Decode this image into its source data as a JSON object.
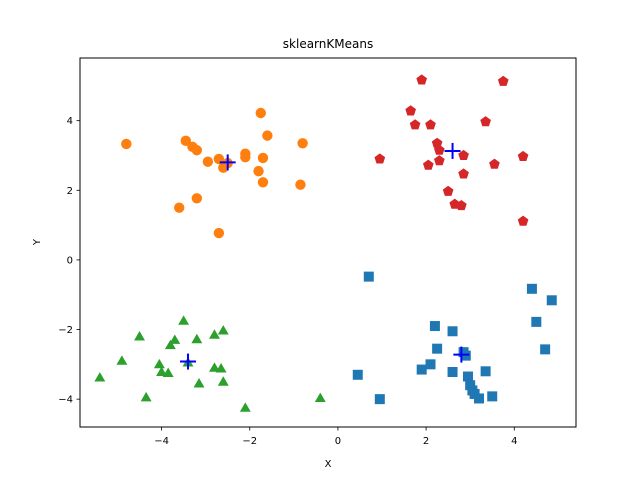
{
  "chart_data": {
    "type": "scatter",
    "title": "sklearnKMeans",
    "xlabel": "X",
    "ylabel": "Y",
    "xlim": [
      -5.85,
      5.4
    ],
    "ylim": [
      -4.8,
      5.8
    ],
    "xticks": [
      -4,
      -2,
      0,
      2,
      4
    ],
    "yticks": [
      -4,
      -2,
      0,
      2,
      4
    ],
    "xtick_labels": [
      "−4",
      "−2",
      "0",
      "2",
      "4"
    ],
    "ytick_labels": [
      "−4",
      "−2",
      "0",
      "2",
      "4"
    ],
    "grid": false,
    "series": [
      {
        "marker": "square",
        "color": "#1f77b4",
        "points": [
          [
            0.7,
            -0.48
          ],
          [
            4.4,
            -0.83
          ],
          [
            4.85,
            -1.16
          ],
          [
            4.5,
            -1.78
          ],
          [
            2.2,
            -1.9
          ],
          [
            2.6,
            -2.05
          ],
          [
            4.7,
            -2.57
          ],
          [
            2.25,
            -2.55
          ],
          [
            2.85,
            -2.65
          ],
          [
            2.9,
            -2.75
          ],
          [
            2.1,
            -3.0
          ],
          [
            1.9,
            -3.15
          ],
          [
            2.6,
            -3.22
          ],
          [
            3.35,
            -3.2
          ],
          [
            0.45,
            -3.3
          ],
          [
            2.95,
            -3.35
          ],
          [
            3.0,
            -3.6
          ],
          [
            3.05,
            -3.75
          ],
          [
            3.1,
            -3.85
          ],
          [
            3.2,
            -3.98
          ],
          [
            3.5,
            -3.92
          ],
          [
            0.95,
            -4.0
          ]
        ]
      },
      {
        "marker": "circle",
        "color": "#ff7f0e",
        "points": [
          [
            -1.75,
            4.22
          ],
          [
            -1.6,
            3.57
          ],
          [
            -4.8,
            3.33
          ],
          [
            -3.45,
            3.42
          ],
          [
            -0.8,
            3.35
          ],
          [
            -3.3,
            3.25
          ],
          [
            -3.2,
            3.15
          ],
          [
            -2.1,
            3.05
          ],
          [
            -2.1,
            2.95
          ],
          [
            -1.7,
            2.93
          ],
          [
            -2.7,
            2.9
          ],
          [
            -2.95,
            2.82
          ],
          [
            -2.6,
            2.65
          ],
          [
            -2.5,
            2.78
          ],
          [
            -1.8,
            2.55
          ],
          [
            -1.7,
            2.23
          ],
          [
            -0.85,
            2.16
          ],
          [
            -3.2,
            1.77
          ],
          [
            -3.6,
            1.5
          ],
          [
            -2.7,
            0.77
          ]
        ]
      },
      {
        "marker": "triangle",
        "color": "#2ca02c",
        "points": [
          [
            -3.5,
            -1.75
          ],
          [
            -2.6,
            -2.03
          ],
          [
            -2.8,
            -2.15
          ],
          [
            -4.5,
            -2.2
          ],
          [
            -3.2,
            -2.28
          ],
          [
            -3.7,
            -2.3
          ],
          [
            -3.8,
            -2.45
          ],
          [
            -4.9,
            -2.9
          ],
          [
            -4.05,
            -3.0
          ],
          [
            -3.4,
            -2.95
          ],
          [
            -2.8,
            -3.1
          ],
          [
            -2.65,
            -3.12
          ],
          [
            -4.0,
            -3.22
          ],
          [
            -3.85,
            -3.25
          ],
          [
            -5.4,
            -3.38
          ],
          [
            -2.6,
            -3.5
          ],
          [
            -3.15,
            -3.55
          ],
          [
            -4.35,
            -3.95
          ],
          [
            -0.4,
            -3.97
          ],
          [
            -2.1,
            -4.25
          ]
        ]
      },
      {
        "marker": "pentagon",
        "color": "#d62728",
        "points": [
          [
            1.9,
            5.17
          ],
          [
            3.75,
            5.13
          ],
          [
            1.65,
            4.28
          ],
          [
            1.75,
            3.88
          ],
          [
            2.1,
            3.88
          ],
          [
            3.35,
            3.97
          ],
          [
            2.25,
            3.35
          ],
          [
            2.3,
            3.15
          ],
          [
            2.3,
            2.85
          ],
          [
            2.85,
            3.0
          ],
          [
            0.95,
            2.9
          ],
          [
            2.05,
            2.72
          ],
          [
            3.55,
            2.75
          ],
          [
            4.2,
            2.97
          ],
          [
            2.85,
            2.47
          ],
          [
            2.5,
            1.97
          ],
          [
            2.65,
            1.6
          ],
          [
            2.8,
            1.56
          ],
          [
            4.2,
            1.11
          ]
        ]
      }
    ],
    "centroids": {
      "marker": "plus",
      "color": "#0000ff",
      "points": [
        [
          2.6,
          3.13
        ],
        [
          -2.5,
          2.8
        ],
        [
          2.8,
          -2.72
        ],
        [
          -3.4,
          -2.92
        ]
      ]
    }
  }
}
